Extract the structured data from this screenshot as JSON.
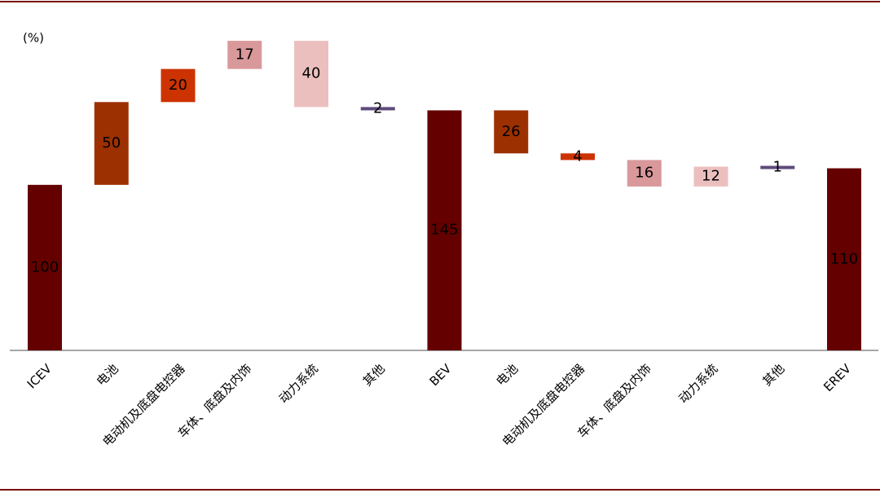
{
  "chart_data": {
    "type": "waterfall",
    "unit_label": "(%)",
    "categories": [
      "ICEV",
      "电池",
      "电动机及底盘电控器",
      "车体、底盘及内饰",
      "动力系统",
      "其他",
      "BEV",
      "电池",
      "电动机及底盘电控器",
      "车体、底盘及内饰",
      "动力系统",
      "其他",
      "EREV"
    ],
    "values": [
      100,
      50,
      20,
      17,
      -40,
      -2,
      145,
      -26,
      -4,
      -16,
      12,
      -1,
      110
    ],
    "value_labels": [
      "100",
      "50",
      "20",
      "17",
      "40",
      "2",
      "145",
      "26",
      "4",
      "16",
      "12",
      "1",
      "110"
    ],
    "colors": [
      "#650000",
      "#9c3000",
      "#cc3300",
      "#d9989a",
      "#ecbfbf",
      "#5e4b7c",
      "#650000",
      "#9c3000",
      "#cc3300",
      "#d9989a",
      "#ecbfbf",
      "#5e4b7c",
      "#650000"
    ],
    "ylim": [
      0,
      190
    ]
  }
}
